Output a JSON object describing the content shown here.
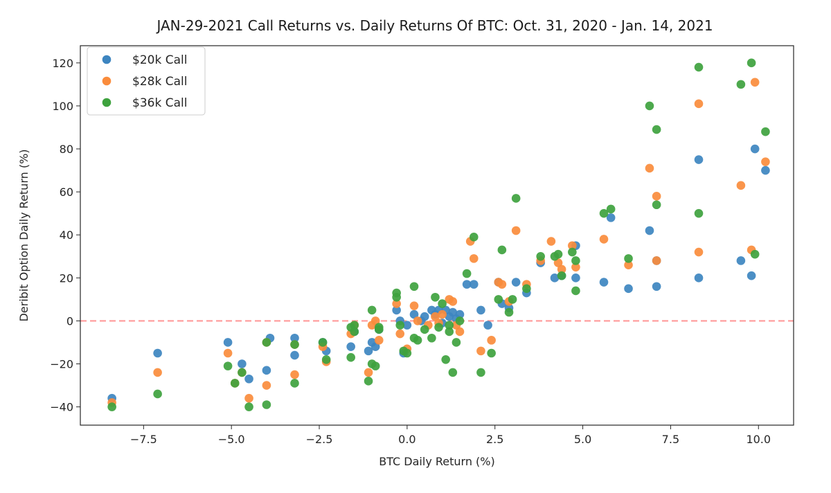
{
  "chart_data": {
    "type": "scatter",
    "title": "JAN-29-2021 Call Returns vs. Daily Returns Of BTC: Oct. 31, 2020 - Jan. 14, 2021",
    "xlabel": "BTC Daily Return (%)",
    "ylabel": "Deribit Option Daily Return (%)",
    "xlim": [
      -9.3,
      11.0
    ],
    "ylim": [
      -48.5,
      128
    ],
    "xticks": [
      -7.5,
      -5.0,
      -2.5,
      0.0,
      2.5,
      5.0,
      7.5,
      10.0
    ],
    "xtick_labels": [
      "−7.5",
      "−5.0",
      "−2.5",
      "0.0",
      "2.5",
      "5.0",
      "7.5",
      "10.0"
    ],
    "yticks": [
      -40,
      -20,
      0,
      20,
      40,
      60,
      80,
      100,
      120
    ],
    "ytick_labels": [
      "−40",
      "−20",
      "0",
      "20",
      "40",
      "60",
      "80",
      "100",
      "120"
    ],
    "legend_position": "top-left",
    "grid": false,
    "reference_line": {
      "y": 0,
      "color": "#ff9999",
      "style": "dashed"
    },
    "series": [
      {
        "name": "$20k Call",
        "color": "#3d85c0",
        "x": [
          -8.4,
          -7.1,
          -5.1,
          -4.7,
          -4.5,
          -4.0,
          -3.9,
          -3.2,
          -3.2,
          -2.4,
          -2.3,
          -1.6,
          -1.5,
          -1.1,
          -1.0,
          -0.9,
          -0.8,
          -0.3,
          -0.2,
          -0.1,
          0.0,
          0.2,
          0.4,
          0.5,
          0.7,
          0.8,
          0.9,
          1.0,
          1.1,
          1.2,
          1.3,
          1.4,
          1.5,
          1.7,
          1.9,
          2.1,
          2.3,
          2.6,
          2.7,
          2.9,
          3.1,
          3.4,
          3.8,
          4.2,
          4.4,
          4.8,
          4.8,
          5.6,
          5.8,
          6.3,
          6.9,
          7.1,
          7.1,
          8.3,
          8.3,
          9.5,
          9.8,
          9.9,
          10.2
        ],
        "y": [
          -36,
          -15,
          -10,
          -20,
          -27,
          -23,
          -8,
          -16,
          -8,
          -10,
          -14,
          -12,
          -5,
          -14,
          -10,
          -12,
          -4,
          5,
          0,
          -15,
          -2,
          3,
          0,
          2,
          5,
          3,
          5,
          -1,
          5,
          2,
          4,
          1,
          3,
          17,
          17,
          5,
          -2,
          18,
          8,
          6,
          18,
          13,
          27,
          20,
          21,
          20,
          35,
          18,
          48,
          15,
          42,
          28,
          16,
          75,
          20,
          28,
          21,
          80,
          70
        ]
      },
      {
        "name": "$28k Call",
        "color": "#fa8c3c",
        "x": [
          -8.4,
          -7.1,
          -5.1,
          -4.9,
          -4.7,
          -4.5,
          -4.0,
          -4.0,
          -3.2,
          -3.2,
          -2.4,
          -2.3,
          -1.6,
          -1.5,
          -1.1,
          -1.0,
          -0.9,
          -0.8,
          -0.3,
          -0.2,
          0.0,
          0.2,
          0.3,
          0.6,
          0.8,
          0.9,
          1.0,
          1.2,
          1.3,
          1.4,
          1.5,
          1.8,
          1.9,
          2.1,
          2.4,
          2.6,
          2.7,
          2.9,
          3.1,
          3.4,
          3.8,
          4.1,
          4.3,
          4.4,
          4.7,
          4.8,
          5.6,
          6.3,
          6.9,
          7.1,
          7.1,
          8.3,
          8.3,
          9.5,
          9.8,
          9.9,
          10.2
        ],
        "y": [
          -38,
          -24,
          -15,
          -29,
          -24,
          -36,
          -30,
          -10,
          -25,
          -11,
          -12,
          -19,
          -6,
          -2,
          -24,
          -2,
          0,
          -9,
          8,
          -6,
          -13,
          7,
          0,
          -2,
          2,
          -1,
          3,
          10,
          9,
          -2,
          -5,
          37,
          29,
          -14,
          -9,
          18,
          17,
          9,
          42,
          17,
          28,
          37,
          27,
          24,
          35,
          25,
          38,
          26,
          71,
          58,
          28,
          101,
          32,
          63,
          33,
          111,
          74
        ]
      },
      {
        "name": "$36k Call",
        "color": "#3ea23e",
        "x": [
          -8.4,
          -7.1,
          -5.1,
          -4.9,
          -4.7,
          -4.5,
          -4.0,
          -4.0,
          -3.2,
          -3.2,
          -2.4,
          -2.3,
          -1.6,
          -1.6,
          -1.5,
          -1.5,
          -1.1,
          -1.0,
          -1.0,
          -0.9,
          -0.8,
          -0.8,
          -0.3,
          -0.3,
          -0.2,
          -0.1,
          0.0,
          0.2,
          0.2,
          0.3,
          0.5,
          0.7,
          0.8,
          0.9,
          1.0,
          1.1,
          1.2,
          1.2,
          1.3,
          1.4,
          1.5,
          1.7,
          1.9,
          2.1,
          2.4,
          2.6,
          2.7,
          2.9,
          3.0,
          3.1,
          3.4,
          3.8,
          4.2,
          4.3,
          4.4,
          4.7,
          4.8,
          4.8,
          5.6,
          5.8,
          6.3,
          6.9,
          7.1,
          7.1,
          8.3,
          8.3,
          9.5,
          9.8,
          9.9,
          10.2
        ],
        "y": [
          -40,
          -34,
          -21,
          -29,
          -24,
          -40,
          -39,
          -10,
          -29,
          -11,
          -10,
          -18,
          -3,
          -17,
          -2,
          -5,
          -28,
          5,
          -20,
          -21,
          -3,
          -4,
          11,
          13,
          -2,
          -14,
          -15,
          16,
          -8,
          -9,
          -4,
          -8,
          11,
          -3,
          8,
          -18,
          -2,
          -5,
          -24,
          -10,
          0,
          22,
          39,
          -24,
          -15,
          10,
          33,
          4,
          10,
          57,
          15,
          30,
          30,
          31,
          21,
          32,
          14,
          28,
          50,
          52,
          29,
          100,
          89,
          54,
          118,
          50,
          110,
          120,
          31,
          88
        ]
      }
    ]
  }
}
